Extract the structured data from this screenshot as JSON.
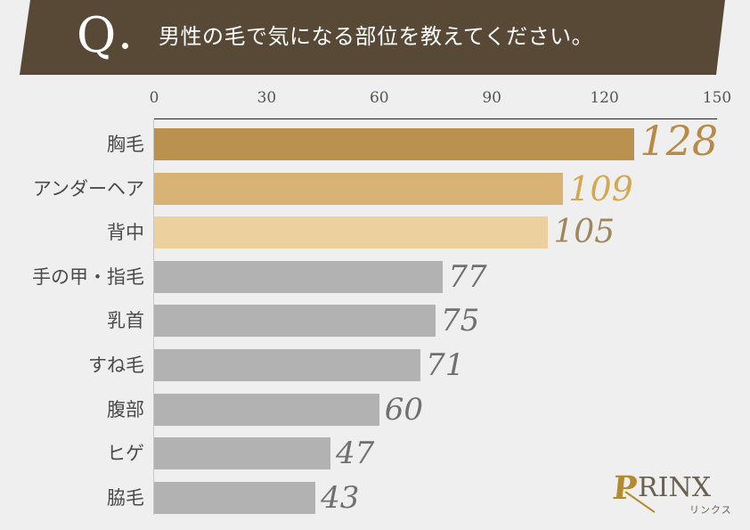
{
  "header": {
    "q_mark": "Q",
    "title": "男性の毛で気になる部位を教えてください。",
    "background": "#574936"
  },
  "logo": {
    "brand": "RINX",
    "initial": "P",
    "kana": "リンクス",
    "accent": "#b38a2e"
  },
  "chart_data": {
    "type": "bar",
    "orientation": "horizontal",
    "title": "男性の毛で気になる部位を教えてください。",
    "xlabel": "",
    "ylabel": "",
    "xlim": [
      0,
      150
    ],
    "x_ticks": [
      "0",
      "30",
      "60",
      "90",
      "120",
      "150"
    ],
    "grid": false,
    "legend": null,
    "categories": [
      "胸毛",
      "アンダーヘア",
      "背中",
      "手の甲・指毛",
      "乳首",
      "すね毛",
      "腹部",
      "ヒゲ",
      "脇毛"
    ],
    "values": [
      128,
      109,
      105,
      77,
      75,
      71,
      60,
      47,
      43
    ],
    "bar_colors": [
      "#bb9150",
      "#d9b275",
      "#ecd19f",
      "#b3b2b2",
      "#b3b2b2",
      "#b3b2b2",
      "#b3b2b2",
      "#b3b2b2",
      "#b3b2b2"
    ],
    "label_colors": [
      "#b88a45",
      "#d4a84f",
      "#a0865c",
      "#707070",
      "#707070",
      "#707070",
      "#707070",
      "#707070",
      "#707070"
    ],
    "label_sizes": [
      46,
      38,
      36,
      34,
      34,
      34,
      34,
      34,
      34
    ]
  }
}
